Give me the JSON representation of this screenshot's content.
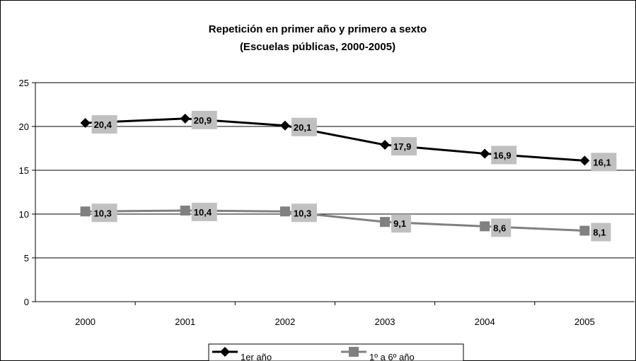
{
  "chart_data": {
    "type": "line",
    "title": "Repetición en primer año y primero a sexto",
    "subtitle": "(Escuelas públicas, 2000-2005)",
    "categories": [
      "2000",
      "2001",
      "2002",
      "2003",
      "2004",
      "2005"
    ],
    "ylim": [
      0,
      25
    ],
    "yticks": [
      0,
      5,
      10,
      15,
      20,
      25
    ],
    "grid": true,
    "legend_position": "bottom",
    "series": [
      {
        "name": "1er año",
        "values": [
          20.4,
          20.9,
          20.1,
          17.9,
          16.9,
          16.1
        ],
        "labels": [
          "20,4",
          "20,9",
          "20,1",
          "17,9",
          "16,9",
          "16,1"
        ],
        "color": "#000000",
        "marker": "diamond"
      },
      {
        "name": "1º a 6º año",
        "values": [
          10.3,
          10.4,
          10.3,
          9.1,
          8.6,
          8.1
        ],
        "labels": [
          "10,3",
          "10,4",
          "10,3",
          "9,1",
          "8,6",
          "8,1"
        ],
        "color": "#808080",
        "marker": "square"
      }
    ],
    "label_background": "#c0c0c0"
  }
}
